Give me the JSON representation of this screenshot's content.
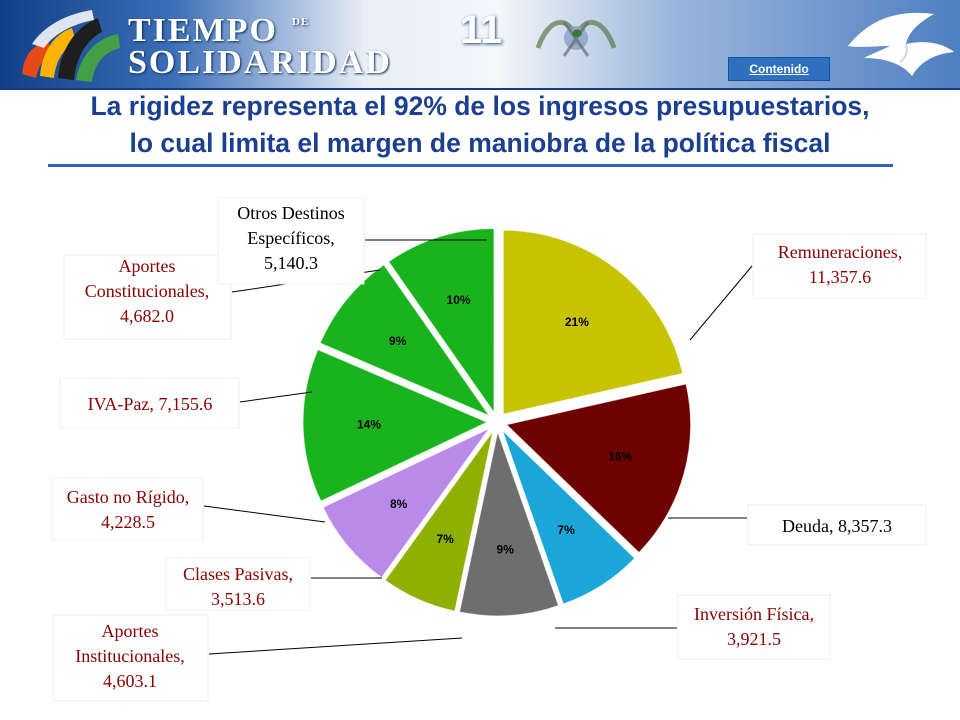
{
  "header": {
    "logo_line1": "TIEMPO",
    "logo_line1_small": "DE",
    "logo_line2": "SOLIDARIDAD",
    "slide_number": "11",
    "contents_link": "Contenido"
  },
  "headline": {
    "line1": "La rigidez representa el 92% de los ingresos presupuestarios,",
    "line2": "lo cual limita el margen de maniobra de la política fiscal"
  },
  "colors": {
    "remuneraciones": "#c8c300",
    "deuda": "#6e0000",
    "inversion_fisica": "#1aa6d9",
    "aportes_institucionales": "#6e6e6e",
    "clases_pasivas": "#8fb000",
    "gasto_no_rigido": "#b98ae8",
    "iva_paz": "#19b41d",
    "aportes_constitucionales": "#19b41d",
    "otros_destinos": "#19b41d"
  },
  "chart_data": {
    "type": "pie",
    "title": "",
    "slices": [
      {
        "key": "remuneraciones",
        "label_lines": [
          "Remuneraciones,",
          "11,357.6"
        ],
        "value": 11357.6,
        "percent_label": "21%",
        "label_color": "dark-red"
      },
      {
        "key": "deuda",
        "label_lines": [
          "Deuda, 8,357.3"
        ],
        "value": 8357.3,
        "percent_label": "16%",
        "label_color": "black"
      },
      {
        "key": "inversion_fisica",
        "label_lines": [
          "Inversión Física,",
          "3,921.5"
        ],
        "value": 3921.5,
        "percent_label": "7%",
        "label_color": "dark-red"
      },
      {
        "key": "aportes_institucionales",
        "label_lines": [
          "Aportes",
          "Institucionales,",
          "4,603.1"
        ],
        "value": 4603.1,
        "percent_label": "9%",
        "label_color": "dark-red"
      },
      {
        "key": "clases_pasivas",
        "label_lines": [
          "Clases Pasivas,",
          "3,513.6"
        ],
        "value": 3513.6,
        "percent_label": "7%",
        "label_color": "dark-red"
      },
      {
        "key": "gasto_no_rigido",
        "label_lines": [
          "Gasto no Rígido,",
          "4,228.5"
        ],
        "value": 4228.5,
        "percent_label": "8%",
        "label_color": "dark-red"
      },
      {
        "key": "iva_paz",
        "label_lines": [
          "IVA-Paz, 7,155.6"
        ],
        "value": 7155.6,
        "percent_label": "14%",
        "label_color": "dark-red"
      },
      {
        "key": "aportes_constitucionales",
        "label_lines": [
          "Aportes",
          "Constitucionales,",
          "4,682.0"
        ],
        "value": 4682.0,
        "percent_label": "9%",
        "label_color": "dark-red"
      },
      {
        "key": "otros_destinos",
        "label_lines": [
          "Otros Destinos",
          "Específicos,",
          "5,140.3"
        ],
        "value": 5140.3,
        "percent_label": "10%",
        "label_color": "black"
      }
    ],
    "start": "12 o'clock",
    "direction": "clockwise",
    "exploded": true,
    "legend": "none"
  }
}
